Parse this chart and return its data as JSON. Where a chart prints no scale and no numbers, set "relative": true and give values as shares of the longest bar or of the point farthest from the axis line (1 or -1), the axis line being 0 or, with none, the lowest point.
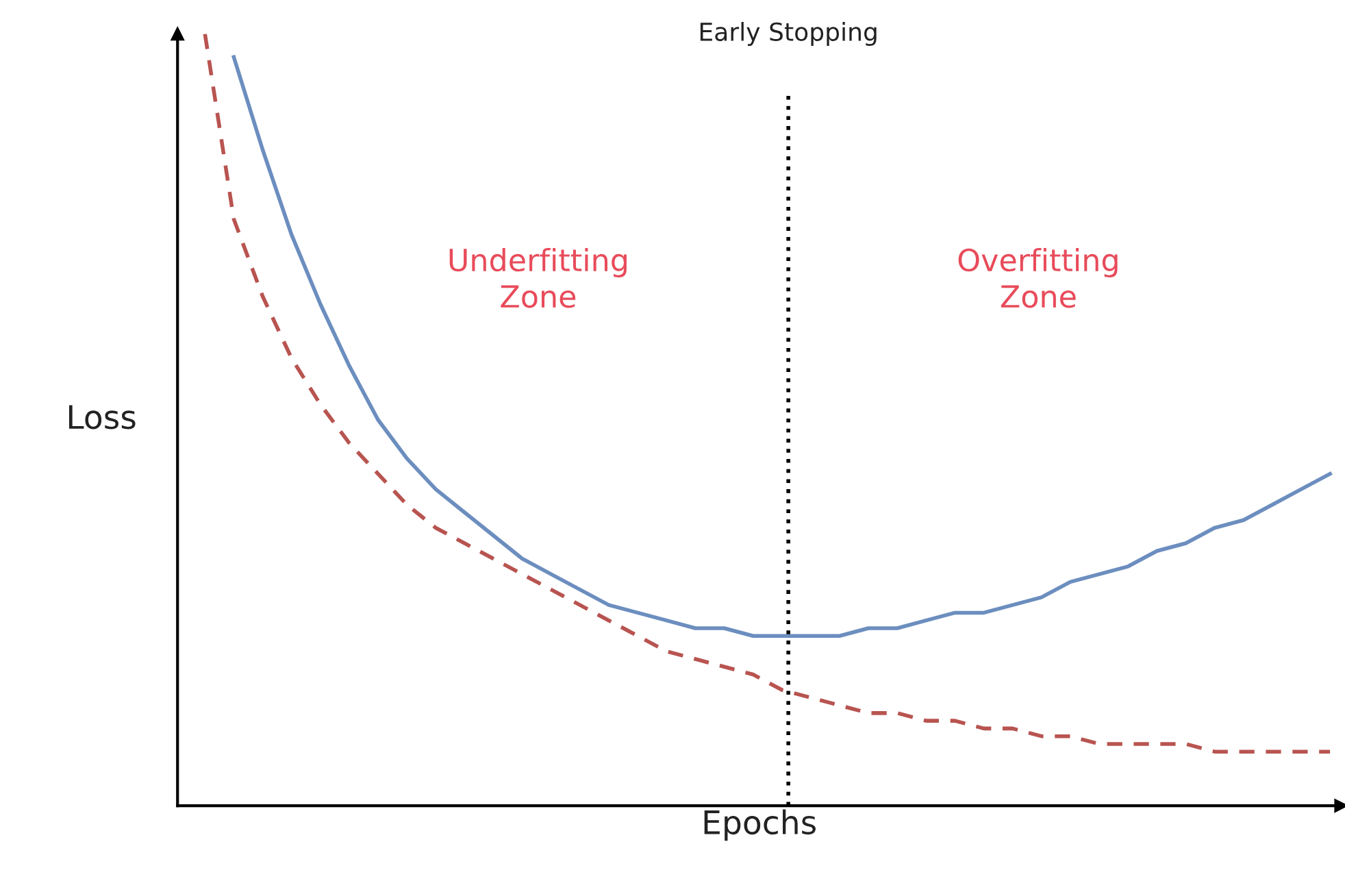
{
  "chart_data": {
    "type": "line",
    "relative": true,
    "xlabel": "Epochs",
    "ylabel": "Loss",
    "tick_labels": false,
    "categories": [
      null,
      null,
      null,
      null,
      null,
      null,
      null,
      null,
      null,
      null,
      null,
      null,
      null,
      null,
      null,
      null,
      null,
      null,
      null,
      null,
      null,
      null,
      null,
      null,
      null,
      null,
      null,
      null,
      null,
      null,
      null,
      null,
      null,
      null,
      null,
      null,
      null,
      null,
      null,
      null
    ],
    "series": [
      {
        "color": "#6c8ebf",
        "line_style": "solid",
        "values": [
          null,
          0.97,
          0.85,
          0.74,
          0.65,
          0.57,
          0.5,
          0.45,
          0.41,
          0.38,
          0.35,
          0.32,
          0.3,
          0.28,
          0.26,
          0.25,
          0.24,
          0.23,
          0.23,
          0.22,
          0.22,
          0.22,
          0.22,
          0.23,
          0.23,
          0.24,
          0.25,
          0.25,
          0.26,
          0.27,
          0.29,
          0.3,
          0.31,
          0.33,
          0.34,
          0.36,
          0.37,
          0.39,
          0.41,
          0.43
        ]
      },
      {
        "color": "#b85450",
        "line_style": "dashed",
        "values": [
          1.0,
          0.76,
          0.66,
          0.58,
          0.52,
          0.47,
          0.43,
          0.39,
          0.36,
          0.34,
          0.32,
          0.3,
          0.28,
          0.26,
          0.24,
          0.22,
          0.2,
          0.19,
          0.18,
          0.17,
          0.15,
          0.14,
          0.13,
          0.12,
          0.12,
          0.11,
          0.11,
          0.1,
          0.1,
          0.09,
          0.09,
          0.08,
          0.08,
          0.08,
          0.08,
          0.07,
          0.07,
          0.07,
          0.07,
          0.07
        ]
      }
    ],
    "annotations": [
      "Early Stopping",
      "Underfitting\nZone",
      "Overfitting\nZone"
    ]
  }
}
